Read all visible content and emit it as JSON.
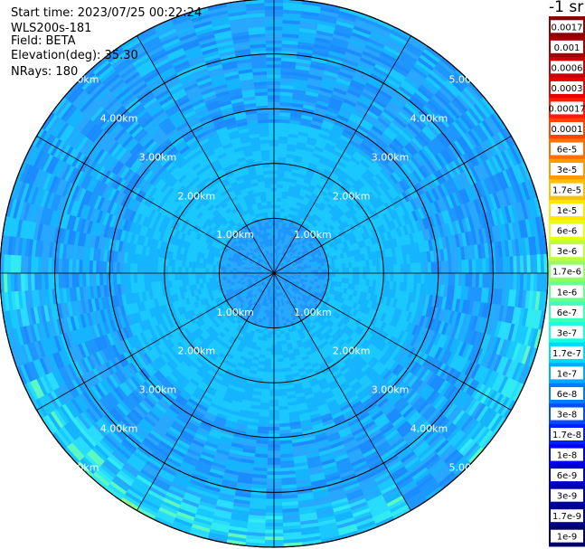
{
  "info": {
    "start_time": "Start time: 2023/07/25 00:22:24",
    "instrument": "WLS200s-181",
    "field": "Field: BETA",
    "elevation": "Elevation(deg): 35.30",
    "nrays": "NRays: 180"
  },
  "colorbar": {
    "title": "-1 sr",
    "labels": [
      "0.0017",
      "0.001",
      "0.0006",
      "0.0003",
      "0.00017",
      "0.0001",
      "6e-5",
      "3e-5",
      "1.7e-5",
      "1e-5",
      "6e-6",
      "3e-6",
      "1.7e-6",
      "1e-6",
      "6e-7",
      "3e-7",
      "1.7e-7",
      "1e-7",
      "6e-8",
      "3e-8",
      "1.7e-8",
      "1e-8",
      "6e-9",
      "3e-9",
      "1.7e-9",
      "1e-9"
    ],
    "colors": [
      "#8b0000",
      "#a50000",
      "#c80000",
      "#e60000",
      "#ff1a00",
      "#ff4400",
      "#ff6e00",
      "#ff9900",
      "#ffc000",
      "#ffe600",
      "#e8ff10",
      "#bdff3a",
      "#93ff64",
      "#69ff8e",
      "#3fffb8",
      "#15ffe2",
      "#00d8ff",
      "#00aaff",
      "#007cff",
      "#004eff",
      "#0020ff",
      "#0000ee",
      "#0000cc",
      "#0000aa",
      "#000088",
      "#000066"
    ]
  },
  "chart_data": {
    "type": "heatmap",
    "projection": "polar (PPI scan)",
    "field": "BETA",
    "ring_labels": [
      "1.00km",
      "2.00km",
      "3.00km",
      "4.00km",
      "5.00km"
    ],
    "ring_ranges_km": [
      1,
      2,
      3,
      4,
      5
    ],
    "max_range_km": 5.0,
    "spoke_count": 12,
    "nrays": 180,
    "colormap": "jet",
    "value_range": [
      1e-09,
      0.0017
    ],
    "dominant_value": "1.7e-7 to 1e-7 (light blue / cyan)",
    "enhanced_regions": "near maximum range in south, south-west and east, ~3e-7 to 3e-6 (cyan to yellow-green)",
    "grid": true
  }
}
